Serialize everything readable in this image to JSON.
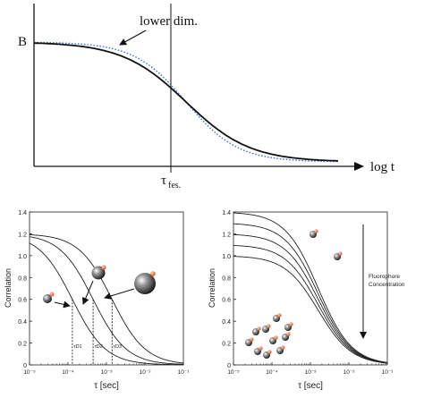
{
  "colors": {
    "curve": "#111111",
    "lower_dim": "#3f6fd0",
    "axis": "#111111",
    "orange": "#e8643a"
  },
  "chart_data": [
    {
      "type": "line",
      "title": "",
      "ylabel": "",
      "y_tick_label": "B",
      "xlabel": "log t",
      "x_marker_label_main": "τ",
      "x_marker_label_sub": "fes.",
      "annotation": "lower dim.",
      "x_range": [
        0,
        1
      ],
      "y_range": [
        0,
        1
      ],
      "series": [
        {
          "style": "solid",
          "x0": 0.5,
          "width": 0.105,
          "shape": "logistic"
        },
        {
          "name": "lower dim.",
          "style": "dotted",
          "x0": 0.5,
          "width": 0.085,
          "shape": "logistic"
        }
      ],
      "vline_x": 0.5
    },
    {
      "type": "line",
      "ylabel": "Correlation",
      "xlabel": "τ [sec]",
      "x_log": true,
      "xlim": [
        1e-05,
        0.1
      ],
      "ylim": [
        0,
        1.4
      ],
      "x_ticks": [
        "10⁻⁵",
        "10⁻⁴",
        "10⁻³",
        "10⁻²",
        "10⁻¹"
      ],
      "y_ticks": [
        "0",
        "0.2",
        "0.4",
        "0.6",
        "0.8",
        "1.0",
        "1.2",
        "1.4"
      ],
      "series": [
        {
          "amplitude": 1.2,
          "tau_d": 0.00013
        },
        {
          "amplitude": 1.2,
          "tau_d": 0.00045
        },
        {
          "amplitude": 1.2,
          "tau_d": 0.0014
        }
      ],
      "markers": [
        "τD1",
        "τD2",
        "τD3"
      ]
    },
    {
      "type": "line",
      "ylabel": "Correlation",
      "xlabel": "τ [sec]",
      "x_log": true,
      "xlim": [
        1e-05,
        0.1
      ],
      "ylim": [
        0,
        1.4
      ],
      "x_ticks": [
        "10⁻⁵",
        "10⁻⁴",
        "10⁻³",
        "10⁻²",
        "10⁻¹"
      ],
      "y_ticks": [
        "0",
        "0.2",
        "0.4",
        "0.6",
        "0.8",
        "1.0",
        "1.2",
        "1.4"
      ],
      "series": [
        {
          "amplitude": 1.4,
          "tau_d": 0.0016
        },
        {
          "amplitude": 1.3,
          "tau_d": 0.0016
        },
        {
          "amplitude": 1.2,
          "tau_d": 0.0016
        },
        {
          "amplitude": 1.1,
          "tau_d": 0.0016
        },
        {
          "amplitude": 1.0,
          "tau_d": 0.0016
        }
      ],
      "arrow_label_line1": "Fluorophore",
      "arrow_label_line2": "Concentration"
    }
  ]
}
